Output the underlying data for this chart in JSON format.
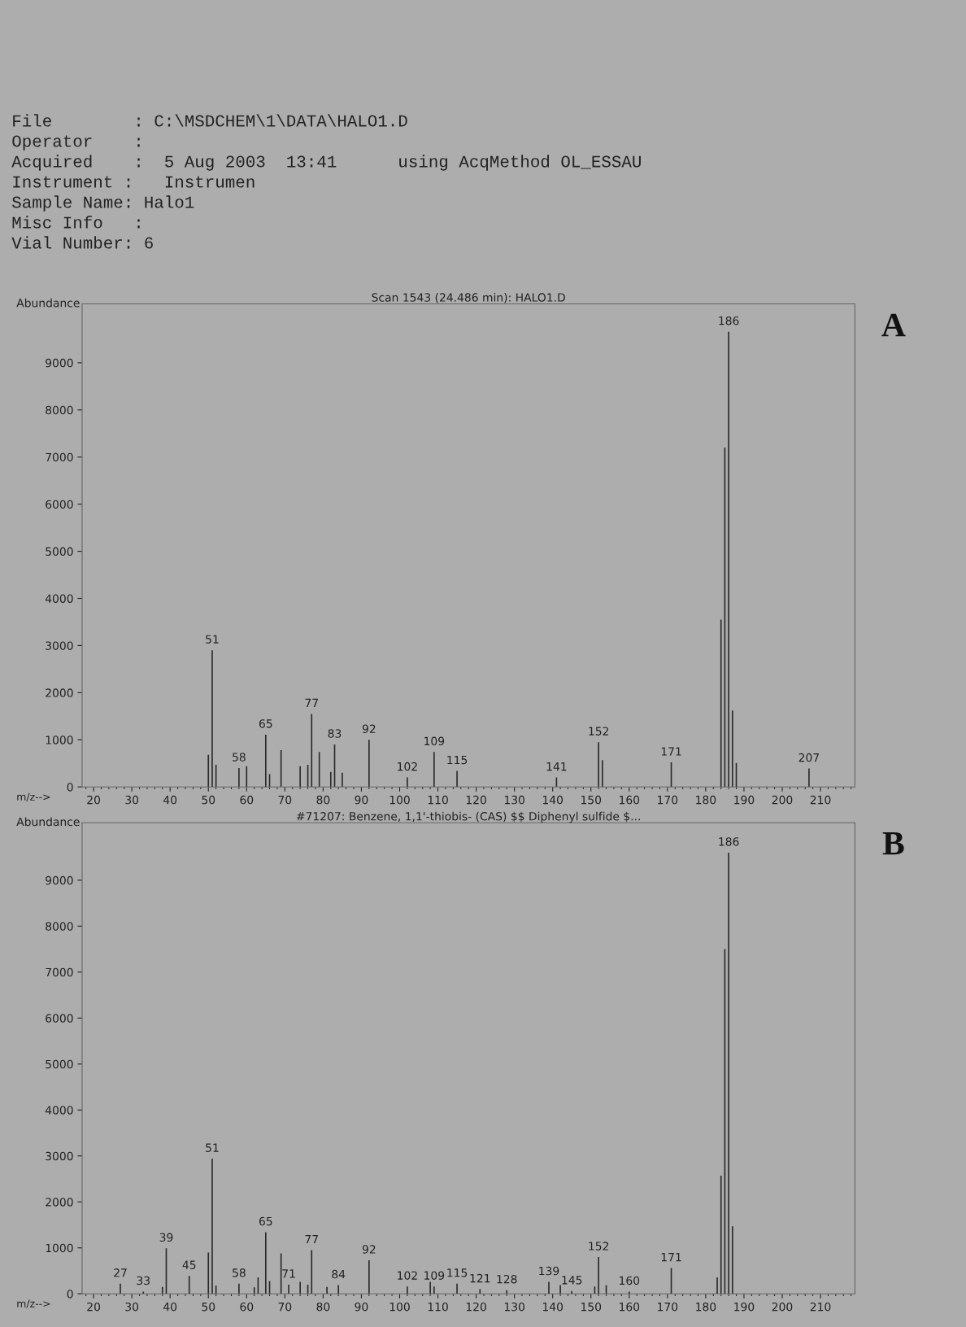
{
  "chart_data": [
    {
      "type": "bar",
      "title": "Scan 1543 (24.486 min): HALO1.D",
      "xlabel": "m/z-->",
      "ylabel": "Abundance",
      "annotations": [
        "File        : C:\\MSDCHEM\\1\\DATA\\HALO1.D",
        "Operator    :",
        "Acquired    :  5 Aug 2003  13:41      using AcqMethod OL_ESSAU",
        "Instrument :   Instrumen",
        "Sample Name: Halo1",
        "Misc Info   :",
        "Vial Number: 6",
        "A",
        {
          "text": "51",
          "x": 51,
          "y": 2900
        },
        {
          "text": "58",
          "x": 58,
          "y": 400
        },
        {
          "text": "65",
          "x": 65,
          "y": 1110
        },
        {
          "text": "77",
          "x": 77,
          "y": 1550
        },
        {
          "text": "83",
          "x": 83,
          "y": 900
        },
        {
          "text": "92",
          "x": 92,
          "y": 1000
        },
        {
          "text": "102",
          "x": 102,
          "y": 200
        },
        {
          "text": "109",
          "x": 109,
          "y": 740
        },
        {
          "text": "115",
          "x": 115,
          "y": 340
        },
        {
          "text": "141",
          "x": 141,
          "y": 200
        },
        {
          "text": "152",
          "x": 152,
          "y": 950
        },
        {
          "text": "171",
          "x": 171,
          "y": 520
        },
        {
          "text": "186",
          "x": 186,
          "y": 9660
        },
        {
          "text": "207",
          "x": 207,
          "y": 390
        }
      ],
      "x": [
        50,
        51,
        52,
        58,
        60,
        65,
        66,
        69,
        74,
        76,
        77,
        79,
        82,
        83,
        85,
        92,
        102,
        109,
        115,
        141,
        152,
        153,
        171,
        184,
        185,
        186,
        187,
        188,
        207
      ],
      "values": [
        680,
        2900,
        470,
        400,
        440,
        1110,
        270,
        780,
        440,
        470,
        1550,
        740,
        320,
        900,
        300,
        1000,
        200,
        740,
        340,
        200,
        950,
        570,
        520,
        3550,
        7200,
        9660,
        1620,
        510,
        390
      ],
      "color": "#2a2a2a",
      "xlim": [
        17,
        219
      ],
      "xticks": [
        20,
        30,
        40,
        50,
        60,
        70,
        80,
        90,
        100,
        110,
        120,
        130,
        140,
        150,
        160,
        170,
        180,
        190,
        200,
        210
      ],
      "ylim": [
        0,
        10250
      ],
      "yticks": [
        0,
        1000,
        2000,
        3000,
        4000,
        5000,
        6000,
        7000,
        8000,
        9000
      ],
      "grid": false
    },
    {
      "type": "bar",
      "title": "#71207: Benzene, 1,1'-thiobis- (CAS) $$ Diphenyl sulfide $...",
      "xlabel": "m/z-->",
      "ylabel": "Abundance",
      "annotations": [
        "B",
        {
          "text": "27",
          "x": 27,
          "y": 220
        },
        {
          "text": "33",
          "x": 33,
          "y": 50
        },
        {
          "text": "39",
          "x": 39,
          "y": 990
        },
        {
          "text": "45",
          "x": 45,
          "y": 390
        },
        {
          "text": "51",
          "x": 51,
          "y": 2940
        },
        {
          "text": "58",
          "x": 58,
          "y": 220
        },
        {
          "text": "65",
          "x": 65,
          "y": 1340
        },
        {
          "text": "71",
          "x": 71,
          "y": 200
        },
        {
          "text": "77",
          "x": 77,
          "y": 950
        },
        {
          "text": "84",
          "x": 84,
          "y": 190
        },
        {
          "text": "92",
          "x": 92,
          "y": 730
        },
        {
          "text": "102",
          "x": 102,
          "y": 160
        },
        {
          "text": "109",
          "x": 109,
          "y": 160
        },
        {
          "text": "115",
          "x": 115,
          "y": 220
        },
        {
          "text": "121",
          "x": 121,
          "y": 100
        },
        {
          "text": "128",
          "x": 128,
          "y": 80
        },
        {
          "text": "139",
          "x": 139,
          "y": 260
        },
        {
          "text": "145",
          "x": 145,
          "y": 60
        },
        {
          "text": "152",
          "x": 152,
          "y": 800
        },
        {
          "text": "160",
          "x": 160,
          "y": 50
        },
        {
          "text": "171",
          "x": 171,
          "y": 560
        },
        {
          "text": "186",
          "x": 186,
          "y": 9600
        }
      ],
      "x": [
        27,
        33,
        38,
        39,
        45,
        50,
        51,
        52,
        58,
        62,
        63,
        65,
        66,
        69,
        71,
        74,
        76,
        77,
        81,
        84,
        92,
        102,
        108,
        109,
        115,
        121,
        128,
        139,
        142,
        145,
        151,
        152,
        154,
        160,
        171,
        183,
        184,
        185,
        186,
        187
      ],
      "values": [
        220,
        50,
        150,
        990,
        390,
        900,
        2940,
        180,
        220,
        140,
        360,
        1340,
        280,
        880,
        200,
        260,
        200,
        950,
        150,
        190,
        730,
        160,
        260,
        160,
        220,
        100,
        80,
        260,
        190,
        60,
        160,
        800,
        190,
        50,
        560,
        360,
        2570,
        7500,
        9600,
        1470
      ],
      "color": "#2a2a2a",
      "xlim": [
        17,
        219
      ],
      "xticks": [
        20,
        30,
        40,
        50,
        60,
        70,
        80,
        90,
        100,
        110,
        120,
        130,
        140,
        150,
        160,
        170,
        180,
        190,
        200,
        210
      ],
      "ylim": [
        0,
        10250
      ],
      "yticks": [
        0,
        1000,
        2000,
        3000,
        4000,
        5000,
        6000,
        7000,
        8000,
        9000
      ],
      "grid": false
    }
  ]
}
